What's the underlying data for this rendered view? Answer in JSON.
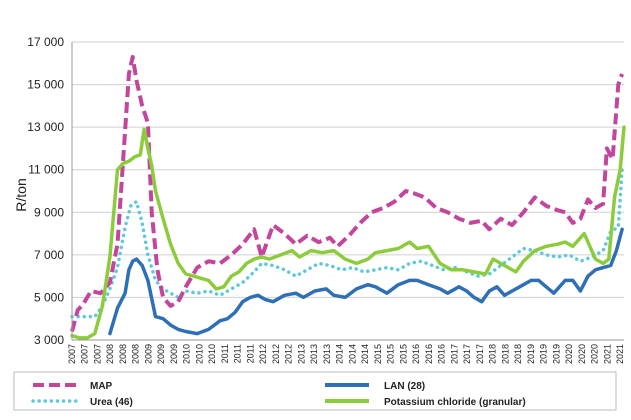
{
  "chart_data": {
    "type": "line",
    "title": "",
    "xlabel": "",
    "ylabel": "R/ton",
    "ylim": [
      3000,
      17000
    ],
    "yticks": [
      3000,
      5000,
      7000,
      9000,
      11000,
      13000,
      15000,
      17000
    ],
    "ytick_labels": [
      "3 000",
      "5 000",
      "7 000",
      "9 000",
      "11 000",
      "13 000",
      "15 000",
      "17 000"
    ],
    "xlim": [
      2007.0,
      2021.55
    ],
    "xtick_labels": [
      "2007",
      "2007",
      "2007",
      "2008",
      "2008",
      "2008",
      "2009",
      "2009",
      "2009",
      "2010",
      "2010",
      "2010",
      "2011",
      "2011",
      "2011",
      "2012",
      "2012",
      "2012",
      "2013",
      "2013",
      "2013",
      "2014",
      "2014",
      "2014",
      "2015",
      "2015",
      "2015",
      "2016",
      "2016",
      "2016",
      "2017",
      "2017",
      "2017",
      "2018",
      "2018",
      "2018",
      "2019",
      "2019",
      "2019",
      "2020",
      "2020",
      "2020",
      "2021",
      "2021"
    ],
    "grid": "horizontal",
    "legend_position": "bottom",
    "series": [
      {
        "name": "MAP",
        "color": "#c2479c",
        "style": "dashed",
        "x": [
          2007.0,
          2007.15,
          2007.3,
          2007.5,
          2007.75,
          2008.0,
          2008.2,
          2008.35,
          2008.5,
          2008.6,
          2008.7,
          2008.85,
          2009.0,
          2009.1,
          2009.25,
          2009.4,
          2009.6,
          2009.8,
          2010.0,
          2010.3,
          2010.6,
          2010.9,
          2011.2,
          2011.5,
          2011.8,
          2012.0,
          2012.3,
          2012.6,
          2012.9,
          2013.2,
          2013.5,
          2013.8,
          2014.0,
          2014.3,
          2014.6,
          2014.9,
          2015.2,
          2015.5,
          2015.8,
          2016.0,
          2016.3,
          2016.6,
          2016.9,
          2017.2,
          2017.5,
          2017.8,
          2018.0,
          2018.3,
          2018.6,
          2018.9,
          2019.2,
          2019.5,
          2019.8,
          2020.0,
          2020.2,
          2020.4,
          2020.6,
          2020.8,
          2021.0,
          2021.1,
          2021.25,
          2021.4,
          2021.5
        ],
        "values": [
          3400,
          4400,
          4700,
          5300,
          5200,
          5700,
          7500,
          11500,
          15500,
          16300,
          15200,
          14000,
          13200,
          9000,
          6300,
          5000,
          4600,
          4800,
          5500,
          6400,
          6700,
          6600,
          7000,
          7500,
          8200,
          6900,
          8400,
          8000,
          7500,
          7900,
          7600,
          7800,
          7400,
          7900,
          8500,
          9000,
          9200,
          9500,
          10000,
          9900,
          9700,
          9200,
          9000,
          8700,
          8500,
          8600,
          8200,
          8700,
          8400,
          9000,
          9700,
          9300,
          9100,
          9000,
          8500,
          8700,
          9600,
          9200,
          9400,
          12000,
          11500,
          15000,
          15500
        ]
      },
      {
        "name": "LAN (28)",
        "color": "#2f6fb5",
        "style": "solid",
        "x": [
          2008.0,
          2008.2,
          2008.4,
          2008.5,
          2008.6,
          2008.7,
          2008.85,
          2009.0,
          2009.2,
          2009.4,
          2009.6,
          2009.8,
          2010.0,
          2010.3,
          2010.6,
          2010.9,
          2011.1,
          2011.3,
          2011.5,
          2011.7,
          2011.9,
          2012.1,
          2012.3,
          2012.6,
          2012.9,
          2013.1,
          2013.4,
          2013.7,
          2013.9,
          2014.2,
          2014.5,
          2014.8,
          2015.0,
          2015.3,
          2015.6,
          2015.9,
          2016.1,
          2016.4,
          2016.7,
          2016.9,
          2017.2,
          2017.4,
          2017.6,
          2017.8,
          2018.0,
          2018.2,
          2018.4,
          2018.6,
          2018.9,
          2019.1,
          2019.3,
          2019.5,
          2019.7,
          2019.9,
          2020.0,
          2020.2,
          2020.4,
          2020.6,
          2020.8,
          2021.0,
          2021.2,
          2021.35,
          2021.5
        ],
        "values": [
          3300,
          4500,
          5200,
          6300,
          6700,
          6800,
          6500,
          5800,
          4100,
          4000,
          3700,
          3500,
          3400,
          3300,
          3500,
          3900,
          4000,
          4300,
          4800,
          5000,
          5100,
          4900,
          4800,
          5100,
          5200,
          5000,
          5300,
          5400,
          5100,
          5000,
          5400,
          5600,
          5500,
          5200,
          5600,
          5800,
          5800,
          5600,
          5400,
          5200,
          5500,
          5300,
          5000,
          4800,
          5300,
          5500,
          5100,
          5300,
          5600,
          5800,
          5800,
          5500,
          5200,
          5600,
          5800,
          5800,
          5300,
          6000,
          6300,
          6400,
          6500,
          7200,
          8200
        ]
      },
      {
        "name": "Urea (46)",
        "color": "#5fc8de",
        "style": "dotted",
        "x": [
          2007.0,
          2007.3,
          2007.6,
          2007.8,
          2008.0,
          2008.2,
          2008.4,
          2008.55,
          2008.7,
          2008.85,
          2009.0,
          2009.2,
          2009.4,
          2009.6,
          2009.8,
          2010.0,
          2010.3,
          2010.6,
          2010.9,
          2011.2,
          2011.5,
          2011.8,
          2012.0,
          2012.3,
          2012.6,
          2012.9,
          2013.2,
          2013.5,
          2013.8,
          2014.1,
          2014.4,
          2014.7,
          2015.0,
          2015.3,
          2015.6,
          2015.9,
          2016.2,
          2016.5,
          2016.8,
          2017.1,
          2017.4,
          2017.7,
          2018.0,
          2018.3,
          2018.6,
          2018.9,
          2019.2,
          2019.5,
          2019.8,
          2020.1,
          2020.4,
          2020.7,
          2021.0,
          2021.2,
          2021.4,
          2021.5
        ],
        "values": [
          4100,
          4100,
          4100,
          4600,
          5400,
          6400,
          8300,
          9300,
          9500,
          8500,
          7000,
          5800,
          5400,
          5200,
          5000,
          5300,
          5200,
          5300,
          5100,
          5400,
          5700,
          6200,
          6600,
          6500,
          6300,
          6000,
          6300,
          6600,
          6500,
          6300,
          6400,
          6200,
          6300,
          6400,
          6300,
          6600,
          6700,
          6500,
          6300,
          6400,
          6200,
          6000,
          6100,
          6500,
          6900,
          7300,
          7200,
          7000,
          6900,
          7000,
          6700,
          6900,
          7200,
          8100,
          8300,
          11000
        ]
      },
      {
        "name": "Potassium chloride (granular)",
        "color": "#8ccc3c",
        "style": "solid",
        "x": [
          2007.0,
          2007.2,
          2007.4,
          2007.6,
          2007.8,
          2008.0,
          2008.2,
          2008.35,
          2008.5,
          2008.65,
          2008.8,
          2008.9,
          2009.0,
          2009.1,
          2009.2,
          2009.4,
          2009.6,
          2009.8,
          2010.0,
          2010.2,
          2010.4,
          2010.6,
          2010.8,
          2011.0,
          2011.2,
          2011.4,
          2011.6,
          2011.8,
          2012.0,
          2012.2,
          2012.5,
          2012.8,
          2013.0,
          2013.3,
          2013.6,
          2013.9,
          2014.2,
          2014.5,
          2014.8,
          2015.0,
          2015.3,
          2015.6,
          2015.9,
          2016.1,
          2016.4,
          2016.7,
          2017.0,
          2017.3,
          2017.6,
          2017.9,
          2018.1,
          2018.4,
          2018.7,
          2018.9,
          2019.2,
          2019.5,
          2019.8,
          2020.0,
          2020.2,
          2020.5,
          2020.8,
          2021.0,
          2021.15,
          2021.3,
          2021.45,
          2021.55
        ],
        "values": [
          3200,
          3100,
          3100,
          3300,
          4600,
          6900,
          11000,
          11300,
          11400,
          11600,
          11700,
          12900,
          12000,
          11200,
          10000,
          8700,
          7500,
          6600,
          6100,
          6000,
          5900,
          5800,
          5400,
          5500,
          6000,
          6200,
          6600,
          6800,
          6900,
          6800,
          7000,
          7200,
          6900,
          7200,
          7100,
          7200,
          6800,
          6600,
          6800,
          7100,
          7200,
          7300,
          7600,
          7300,
          7400,
          6600,
          6300,
          6300,
          6200,
          6100,
          6800,
          6500,
          6200,
          6700,
          7200,
          7400,
          7500,
          7600,
          7400,
          8000,
          6800,
          6600,
          6800,
          9700,
          11000,
          13000
        ]
      }
    ]
  }
}
